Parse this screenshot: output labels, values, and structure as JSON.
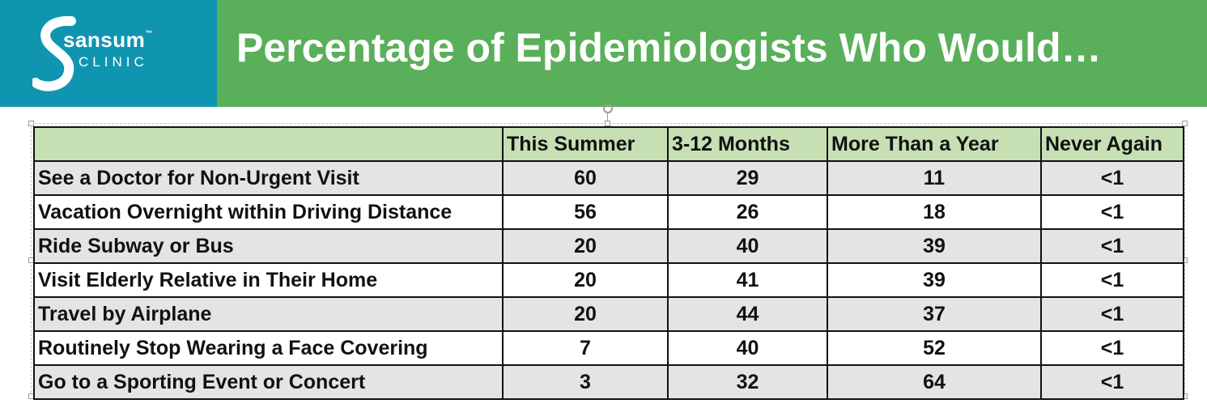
{
  "logo": {
    "name": "sansum",
    "trademark": "™",
    "subtitle": "CLINIC"
  },
  "title": "Percentage of Epidemiologists Who Would…",
  "colors": {
    "logo_bg": "#1095b0",
    "title_bg": "#5aaf5a",
    "header_bg": "#c6e0b4",
    "row_alt": "#e4e4e4"
  },
  "table": {
    "headers": [
      "",
      "This Summer",
      "3-12 Months",
      "More Than a Year",
      "Never Again"
    ],
    "rows": [
      {
        "activity": "See a Doctor for Non-Urgent Visit",
        "values": [
          "60",
          "29",
          "11",
          "<1"
        ]
      },
      {
        "activity": "Vacation Overnight within Driving Distance",
        "values": [
          "56",
          "26",
          "18",
          "<1"
        ]
      },
      {
        "activity": "Ride Subway or Bus",
        "values": [
          "20",
          "40",
          "39",
          "<1"
        ]
      },
      {
        "activity": "Visit Elderly Relative in Their Home",
        "values": [
          "20",
          "41",
          "39",
          "<1"
        ]
      },
      {
        "activity": "Travel by Airplane",
        "values": [
          "20",
          "44",
          "37",
          "<1"
        ]
      },
      {
        "activity": "Routinely Stop Wearing a Face Covering",
        "values": [
          "7",
          "40",
          "52",
          "<1"
        ]
      },
      {
        "activity": "Go to a Sporting Event or Concert",
        "values": [
          "3",
          "32",
          "64",
          "<1"
        ]
      }
    ]
  }
}
